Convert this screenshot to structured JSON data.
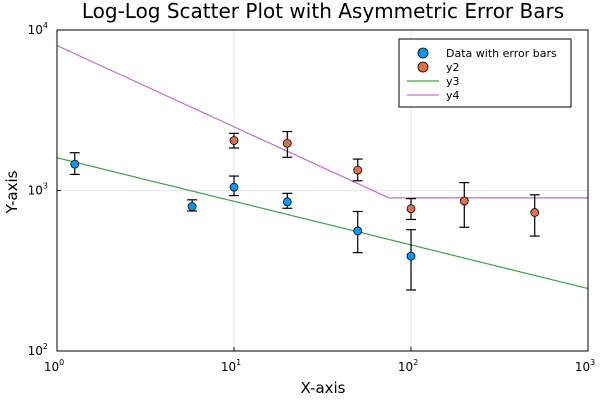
{
  "chart_data": {
    "type": "scatter",
    "title": "Log-Log Scatter Plot with Asymmetric Error Bars",
    "xlabel": "X-axis",
    "ylabel": "Y-axis",
    "xscale": "log10",
    "yscale": "log10",
    "xlim": [
      1,
      1000
    ],
    "ylim": [
      100,
      10000
    ],
    "grid": true,
    "legend_position": "top-right",
    "x_ticks": [
      {
        "base": "10",
        "exp": "0",
        "value": 1
      },
      {
        "base": "10",
        "exp": "1",
        "value": 10
      },
      {
        "base": "10",
        "exp": "2",
        "value": 100
      },
      {
        "base": "10",
        "exp": "3",
        "value": 1000
      }
    ],
    "y_ticks": [
      {
        "base": "10",
        "exp": "2",
        "value": 100
      },
      {
        "base": "10",
        "exp": "3",
        "value": 1000
      },
      {
        "base": "10",
        "exp": "4",
        "value": 10000
      }
    ],
    "series": [
      {
        "name": "Data with error bars",
        "kind": "scatter",
        "color": "#009AFA",
        "points": [
          {
            "x": 1.26,
            "y": 1460,
            "y_lo": 1260,
            "y_hi": 1720
          },
          {
            "x": 5.8,
            "y": 795,
            "y_lo": 745,
            "y_hi": 875
          },
          {
            "x": 10,
            "y": 1050,
            "y_lo": 930,
            "y_hi": 1230
          },
          {
            "x": 20,
            "y": 850,
            "y_lo": 775,
            "y_hi": 960
          },
          {
            "x": 50,
            "y": 560,
            "y_lo": 410,
            "y_hi": 740
          },
          {
            "x": 100,
            "y": 390,
            "y_lo": 240,
            "y_hi": 570
          }
        ]
      },
      {
        "name": "y2",
        "kind": "scatter",
        "color": "#E26F46",
        "points": [
          {
            "x": 10,
            "y": 2050,
            "y_lo": 1840,
            "y_hi": 2270
          },
          {
            "x": 20,
            "y": 1970,
            "y_lo": 1610,
            "y_hi": 2330
          },
          {
            "x": 50,
            "y": 1340,
            "y_lo": 1150,
            "y_hi": 1570
          },
          {
            "x": 100,
            "y": 770,
            "y_lo": 660,
            "y_hi": 890
          },
          {
            "x": 200,
            "y": 860,
            "y_lo": 590,
            "y_hi": 1120
          },
          {
            "x": 500,
            "y": 730,
            "y_lo": 520,
            "y_hi": 940
          }
        ]
      },
      {
        "name": "y3",
        "kind": "line",
        "color": "#3DA44D",
        "points": [
          {
            "x": 1,
            "y": 1600
          },
          {
            "x": 1000,
            "y": 245
          }
        ]
      },
      {
        "name": "y4",
        "kind": "line",
        "color": "#C271D2",
        "points": [
          {
            "x": 1,
            "y": 8000
          },
          {
            "x": 75,
            "y": 900
          },
          {
            "x": 1000,
            "y": 900
          }
        ]
      }
    ]
  }
}
